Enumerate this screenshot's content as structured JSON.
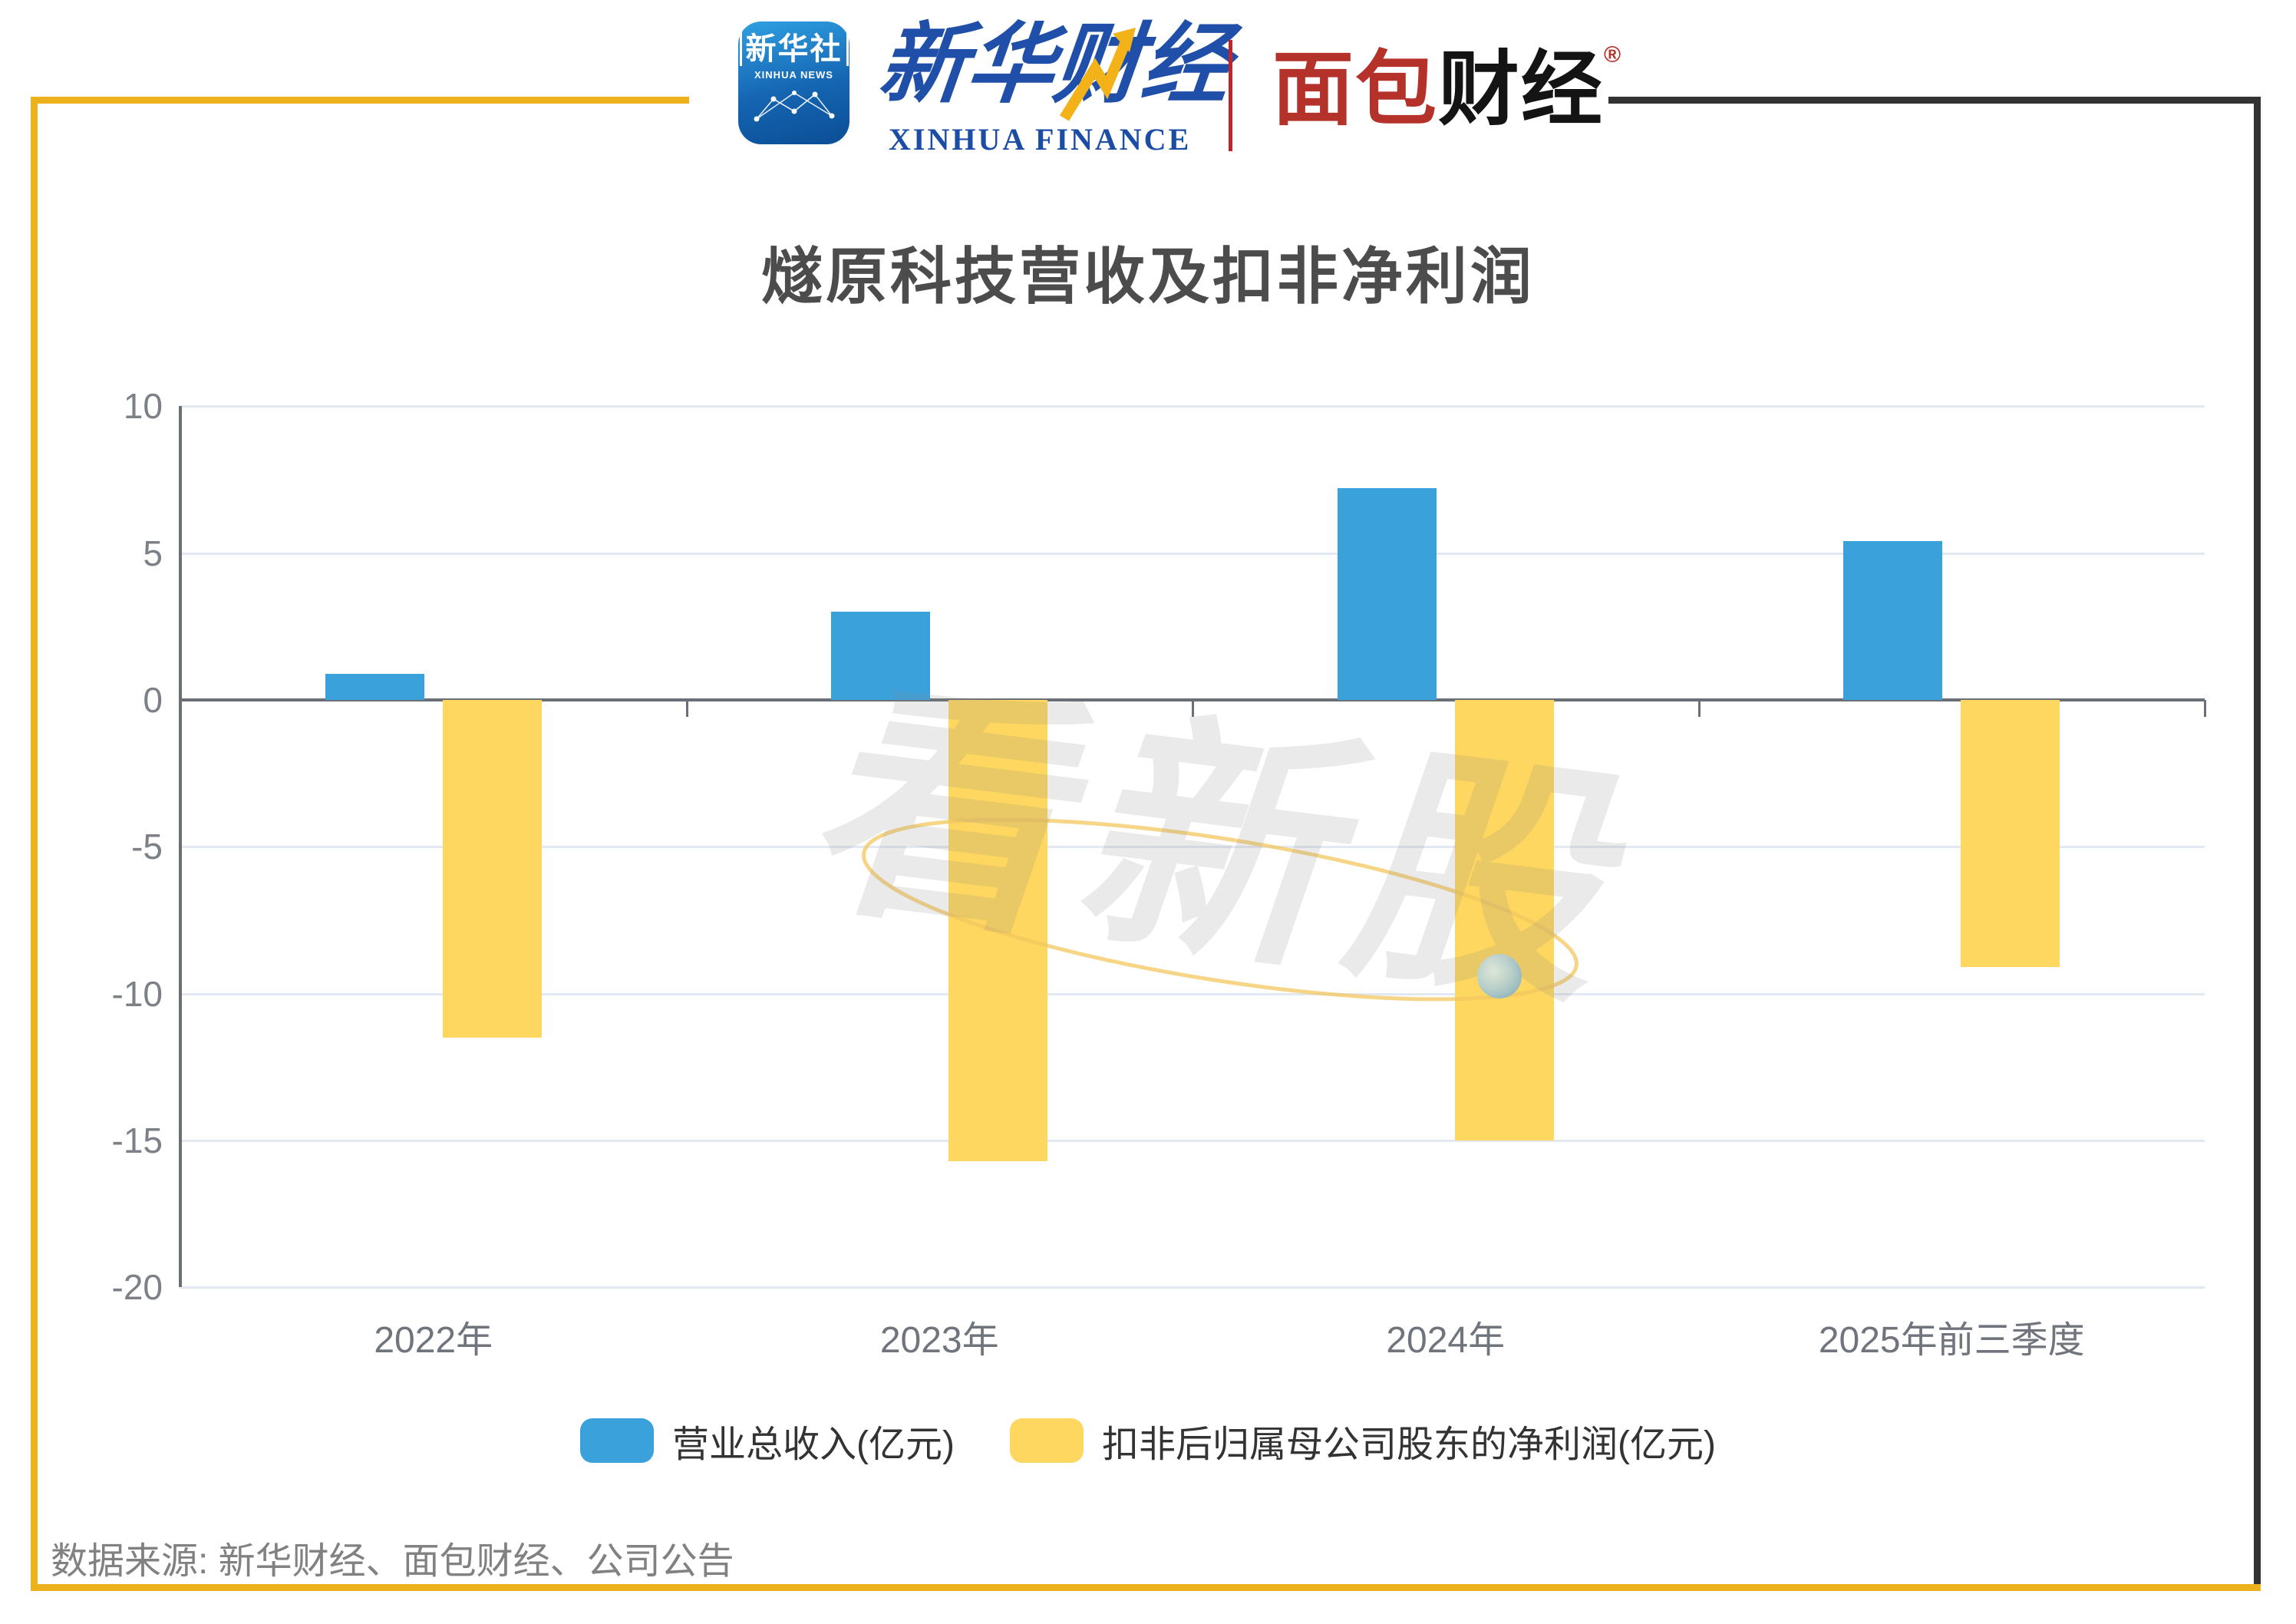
{
  "header": {
    "xinhua_app": {
      "name_cn": "新华社",
      "name_en": "XINHUA NEWS"
    },
    "xinhua_finance": {
      "brand_cn": "新华财经",
      "brand_en": "XINHUA FINANCE"
    },
    "mianbao": {
      "red_part": "面包",
      "black_part": "财经",
      "reg_mark": "®"
    }
  },
  "title": "燧原科技营收及扣非净利润",
  "watermark": {
    "text": "看新股"
  },
  "chart_data": {
    "type": "bar",
    "title": "燧原科技营收及扣非净利润",
    "categories": [
      "2022年",
      "2023年",
      "2024年",
      "2025年前三季度"
    ],
    "series": [
      {
        "name": "营业总收入(亿元)",
        "color": "#3AA1DB",
        "values": [
          0.9,
          3.0,
          7.2,
          5.4
        ]
      },
      {
        "name": "扣非后归属母公司股东的净利润(亿元)",
        "color": "#FDD75F",
        "values": [
          -11.5,
          -15.7,
          -15.0,
          -9.1
        ]
      }
    ],
    "ylim": [
      -20,
      10
    ],
    "yticks": [
      10,
      5,
      0,
      -5,
      -10,
      -15,
      -20
    ],
    "grid": true,
    "legend_position": "bottom",
    "bar_colors": {
      "revenue": "#3AA1DB",
      "net_profit": "#FDD75F"
    }
  },
  "frame_colors": {
    "gold": "#EDB11E",
    "dark": "#333333"
  },
  "footer": {
    "source": "数据来源: 新华财经、面包财经、公司公告"
  }
}
